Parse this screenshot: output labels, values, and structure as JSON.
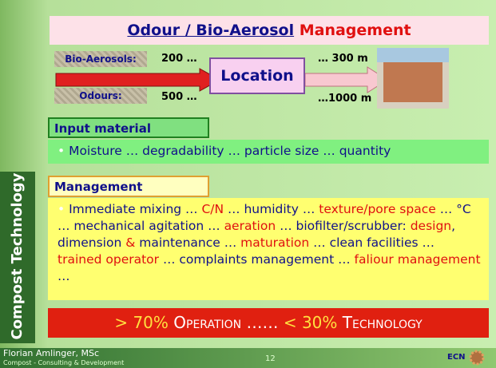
{
  "title": {
    "part1": "Odour / Bio-Aerosol",
    "part2": "Management"
  },
  "diagram": {
    "bio_aerosols_label": "Bio-Aerosols:",
    "odours_label": "Odours:",
    "bio_from": "200 …",
    "odours_from": "500 …",
    "location": "Location",
    "bio_to": "… 300 m",
    "odours_to": "…1000 m"
  },
  "input": {
    "header": "Input material",
    "text": "Moisture … degradability … particle size … quantity"
  },
  "management": {
    "header": "Management",
    "segments": [
      {
        "text": "Immediate mixing … ",
        "color": "#10108a"
      },
      {
        "text": "C/N",
        "color": "#e01010"
      },
      {
        "text": " … humidity … ",
        "color": "#10108a"
      },
      {
        "text": "texture/pore space",
        "color": "#e01010"
      },
      {
        "text": " … °C … mechanical agitation … ",
        "color": "#10108a"
      },
      {
        "text": "aeration",
        "color": "#e01010"
      },
      {
        "text": " … biofilter/scrubber: ",
        "color": "#10108a"
      },
      {
        "text": "design",
        "color": "#e01010"
      },
      {
        "text": ", dimension ",
        "color": "#10108a"
      },
      {
        "text": "&",
        "color": "#e01010"
      },
      {
        "text": " maintenance … ",
        "color": "#10108a"
      },
      {
        "text": "maturation",
        "color": "#e01010"
      },
      {
        "text": " … clean facilities … ",
        "color": "#10108a"
      },
      {
        "text": "trained operator",
        "color": "#e01010"
      },
      {
        "text": " … complaints management … ",
        "color": "#10108a"
      },
      {
        "text": "faliour management",
        "color": "#e01010"
      },
      {
        "text": " …",
        "color": "#10108a"
      }
    ]
  },
  "banner": {
    "segments": [
      {
        "text": "> 70%",
        "color": "#ffe040"
      },
      {
        "text": " Operation …… ",
        "color": "#ffffff"
      },
      {
        "text": "< 30%",
        "color": "#ffe040"
      },
      {
        "text": " Technology",
        "color": "#ffffff"
      }
    ]
  },
  "side_title": "Compost Technology",
  "footer": {
    "author": "Florian Amlinger, MSc",
    "company": "Compost - Consulting & Development",
    "page": "12",
    "logo": "ECN"
  }
}
